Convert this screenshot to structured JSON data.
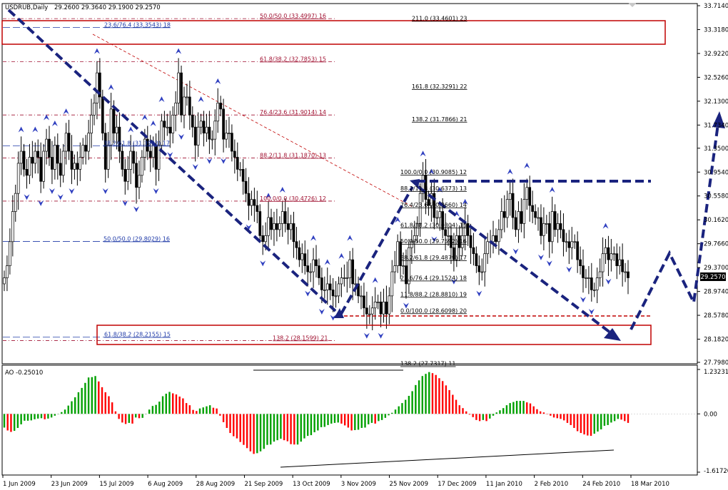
{
  "header": {
    "symbol": "USDRUB,Daily",
    "ohlc": "29.2600 29.3640 29.1900 29.2570"
  },
  "ao_header": "AO -0.25010",
  "chart_data": [
    {
      "type": "candlestick",
      "symbol": "USDRUB",
      "timeframe": "Daily",
      "ylim": [
        27.798,
        33.714
      ],
      "price_ticks": [
        "33.7140",
        "33.3180",
        "32.9220",
        "32.5260",
        "32.1300",
        "31.7340",
        "31.3500",
        "30.9540",
        "30.5580",
        "30.1620",
        "29.7660",
        "29.3700",
        "28.9740",
        "28.5780",
        "28.1820",
        "27.7980"
      ],
      "current_price": "29.2570",
      "x_labels": [
        "1 Jun 2009",
        "23 Jun 2009",
        "15 Jul 2009",
        "6 Aug 2009",
        "28 Aug 2009",
        "21 Sep 2009",
        "13 Oct 2009",
        "3 Nov 2009",
        "25 Nov 2009",
        "17 Dec 2009",
        "11 Jan 2010",
        "2 Feb 2010",
        "24 Feb 2010",
        "18 Mar 2010"
      ],
      "fib_left": [
        {
          "label": "23.6/76.4 (33.3543) 18",
          "price": 33.3543,
          "color": "#1f3aa8"
        },
        {
          "label": "38.2/61.8 (31.3903) 17",
          "price": 31.3903,
          "color": "#1f3aa8"
        },
        {
          "label": "50.0/50.0 (29.8029) 16",
          "price": 29.8029,
          "color": "#1f3aa8"
        },
        {
          "label": "61.8/38.2 (28.2155) 15",
          "price": 28.2155,
          "color": "#1f3aa8"
        }
      ],
      "fib_mid": [
        {
          "label": "50.0/50.0 (33.4997) 16",
          "price": 33.4997
        },
        {
          "label": "61.8/38.2 (32.7853) 15",
          "price": 32.7853
        },
        {
          "label": "76.4/23.6 (31.9014) 14",
          "price": 31.9014
        },
        {
          "label": "88.2/11.8 (31.1870) 13",
          "price": 31.187
        },
        {
          "label": "100.0/0.0 (30.4726) 12",
          "price": 30.4726
        },
        {
          "label": "138.2 (28.1599) 21",
          "price": 28.1599
        }
      ],
      "fib_right": [
        {
          "label": "211.0 (33.4601) 23",
          "price": 33.4601
        },
        {
          "label": "161.8 (32.3291) 22",
          "price": 32.3291
        },
        {
          "label": "138.2 (31.7866) 21",
          "price": 31.7866
        },
        {
          "label": "100.0/0.0 (30.9085) 12",
          "price": 30.9085
        },
        {
          "label": "88.2/11.8 (30.6373) 13",
          "price": 30.6373
        },
        {
          "label": "76.4/23.6 (30.3660) 14",
          "price": 30.366
        },
        {
          "label": "61.8/38.2 (30.0304) 15",
          "price": 30.0304
        },
        {
          "label": "50.0/50.0 (29.7592) 16",
          "price": 29.7592
        },
        {
          "label": "38.2/61.8 (29.4879) 17",
          "price": 29.4879
        },
        {
          "label": "23.6/76.4 (29.1524) 18",
          "price": 29.1524
        },
        {
          "label": "11.8/88.2 (28.8810) 19",
          "price": 28.881
        },
        {
          "label": "0.0/100.0 (28.6098) 20",
          "price": 28.6098
        },
        {
          "label": "138.2 (27.7317) 11",
          "price": 27.7317
        }
      ],
      "closes": [
        29.2,
        29.4,
        29.8,
        30.3,
        30.6,
        31.1,
        31.3,
        31.0,
        30.9,
        31.2,
        31.1,
        31.3,
        31.2,
        30.8,
        31.3,
        31.5,
        31.2,
        31.0,
        31.4,
        31.1,
        30.9,
        31.3,
        31.6,
        31.3,
        31.0,
        31.1,
        31.0,
        31.2,
        31.4,
        31.3,
        31.6,
        31.9,
        32.1,
        32.6,
        32.2,
        31.6,
        31.0,
        31.4,
        32.0,
        31.6,
        31.7,
        31.3,
        31.0,
        30.8,
        31.0,
        31.3,
        31.1,
        30.7,
        30.9,
        31.2,
        31.5,
        31.3,
        31.2,
        31.4,
        31.0,
        31.4,
        31.8,
        31.7,
        31.7,
        31.6,
        31.9,
        32.1,
        32.6,
        31.9,
        32.2,
        32.2,
        31.9,
        31.7,
        31.4,
        31.7,
        31.8,
        31.6,
        31.7,
        31.5,
        31.5,
        31.8,
        32.1,
        32.0,
        31.5,
        31.6,
        31.6,
        31.3,
        31.2,
        31.0,
        31.0,
        30.8,
        30.6,
        30.4,
        30.5,
        30.4,
        30.3,
        29.9,
        29.8,
        29.9,
        30.2,
        30.0,
        30.1,
        30.0,
        30.1,
        30.3,
        30.1,
        30.0,
        30.1,
        29.8,
        29.7,
        29.5,
        29.6,
        29.4,
        29.3,
        29.3,
        29.5,
        29.4,
        29.2,
        29.0,
        29.0,
        29.1,
        29.0,
        28.9,
        28.9,
        29.1,
        29.2,
        29.2,
        29.2,
        29.5,
        29.1,
        29.1,
        28.9,
        28.9,
        28.7,
        28.6,
        28.6,
        28.7,
        28.8,
        28.8,
        28.6,
        28.8,
        28.6,
        28.9,
        29.3,
        29.4,
        29.8,
        29.4,
        29.4,
        29.1,
        29.7,
        29.8,
        29.9,
        30.1,
        30.6,
        30.9,
        30.5,
        30.4,
        30.6,
        30.2,
        30.2,
        30.3,
        30.0,
        29.9,
        29.9,
        29.7,
        29.5,
        29.9,
        29.7,
        29.9,
        30.1,
        29.9,
        29.7,
        29.6,
        29.4,
        29.3,
        29.3,
        29.6,
        29.8,
        29.8,
        29.9,
        29.8,
        30.0,
        30.3,
        30.2,
        30.5,
        30.6,
        30.2,
        30.0,
        30.3,
        30.1,
        30.5,
        30.7,
        30.4,
        30.3,
        30.2,
        30.2,
        29.9,
        30.1,
        30.1,
        29.8,
        30.3,
        30.0,
        30.1,
        30.0,
        29.8,
        29.8,
        29.7,
        29.8,
        29.8,
        29.5,
        29.4,
        29.2,
        29.2,
        29.2,
        29.0,
        29.0,
        29.2,
        29.3,
        29.6,
        29.7,
        29.5,
        29.6,
        29.6,
        29.4,
        29.5,
        29.3,
        29.3,
        29.2
      ]
    },
    {
      "type": "bar",
      "name": "AO",
      "ylim": [
        -1.6172,
        1.2323
      ],
      "ticks": [
        "1.23231",
        "0.00",
        "-1.61720"
      ],
      "values": [
        -0.38,
        -0.46,
        -0.5,
        -0.47,
        -0.39,
        -0.29,
        -0.19,
        -0.19,
        -0.18,
        -0.15,
        -0.13,
        -0.12,
        -0.15,
        -0.13,
        -0.1,
        -0.05,
        -0.01,
        0.05,
        0.12,
        0.23,
        0.35,
        0.46,
        0.6,
        0.72,
        0.86,
        1.01,
        1.02,
        1.05,
        0.9,
        0.74,
        0.6,
        0.49,
        0.32,
        0.07,
        -0.14,
        -0.24,
        -0.28,
        -0.25,
        -0.27,
        -0.1,
        -0.12,
        -0.11,
        -0.01,
        0.12,
        0.22,
        0.25,
        0.34,
        0.49,
        0.56,
        0.61,
        0.57,
        0.54,
        0.48,
        0.43,
        0.3,
        0.24,
        0.11,
        0.08,
        0.15,
        0.18,
        0.21,
        0.24,
        0.17,
        0.15,
        -0.05,
        -0.23,
        -0.39,
        -0.53,
        -0.62,
        -0.68,
        -0.78,
        -0.86,
        -0.95,
        -1.04,
        -1.11,
        -1.09,
        -1.04,
        -0.97,
        -0.86,
        -0.85,
        -0.77,
        -0.73,
        -0.69,
        -0.73,
        -0.76,
        -0.84,
        -0.85,
        -0.85,
        -0.77,
        -0.68,
        -0.61,
        -0.59,
        -0.51,
        -0.46,
        -0.37,
        -0.36,
        -0.31,
        -0.27,
        -0.25,
        -0.24,
        -0.27,
        -0.32,
        -0.38,
        -0.46,
        -0.45,
        -0.44,
        -0.39,
        -0.38,
        -0.29,
        -0.25,
        -0.27,
        -0.2,
        -0.17,
        -0.11,
        -0.04,
        0.03,
        0.12,
        0.21,
        0.3,
        0.39,
        0.5,
        0.63,
        0.8,
        0.93,
        1.05,
        1.11,
        1.16,
        1.13,
        1.08,
        0.99,
        0.91,
        0.79,
        0.66,
        0.53,
        0.39,
        0.24,
        0.16,
        0.07,
        -0.02,
        -0.09,
        -0.17,
        -0.2,
        -0.17,
        -0.2,
        -0.13,
        -0.05,
        0.04,
        0.1,
        0.16,
        0.24,
        0.3,
        0.33,
        0.36,
        0.36,
        0.36,
        0.32,
        0.29,
        0.21,
        0.13,
        0.07,
        0.04,
        -0.01,
        -0.05,
        -0.1,
        -0.12,
        -0.14,
        -0.18,
        -0.25,
        -0.31,
        -0.39,
        -0.48,
        -0.53,
        -0.57,
        -0.6,
        -0.61,
        -0.55,
        -0.49,
        -0.43,
        -0.33,
        -0.31,
        -0.24,
        -0.2,
        -0.14,
        -0.16,
        -0.2,
        -0.25
      ]
    }
  ]
}
